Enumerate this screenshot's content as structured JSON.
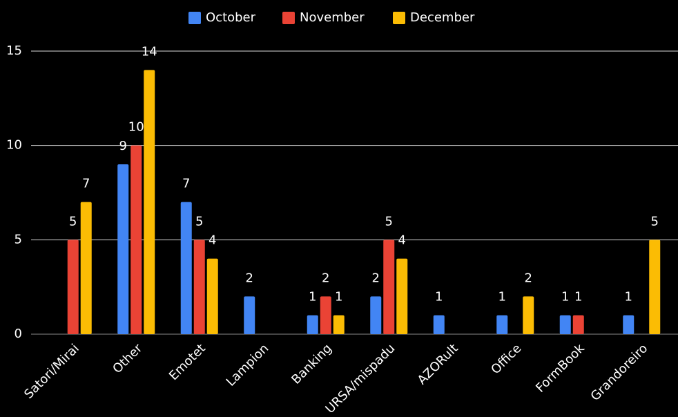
{
  "chart_data": {
    "type": "bar",
    "categories": [
      "Satori/Mirai",
      "Other",
      "Emotet",
      "Lampion",
      "Banking",
      "URSA/mispadu",
      "AZORult",
      "Office",
      "FormBook",
      "Grandoreiro"
    ],
    "series": [
      {
        "name": "October",
        "color": "#4285f4",
        "values": [
          null,
          9,
          7,
          2,
          1,
          2,
          1,
          1,
          1,
          1
        ]
      },
      {
        "name": "November",
        "color": "#ea4335",
        "values": [
          5,
          10,
          5,
          null,
          2,
          5,
          null,
          null,
          1,
          null
        ]
      },
      {
        "name": "December",
        "color": "#fbbc04",
        "values": [
          7,
          14,
          4,
          null,
          1,
          4,
          null,
          2,
          null,
          5
        ]
      }
    ],
    "ylim": [
      0,
      15
    ],
    "yticks": [
      0,
      5,
      10,
      15
    ],
    "grid": true,
    "legend": "top"
  }
}
